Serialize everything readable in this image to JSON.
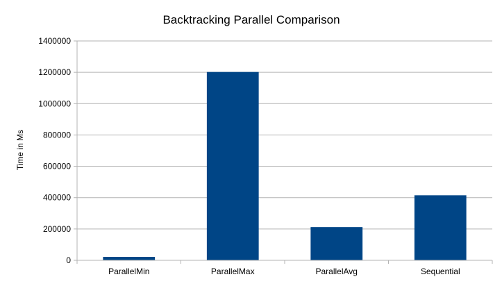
{
  "chart_data": {
    "type": "bar",
    "title": "Backtracking Parallel Comparison",
    "xlabel": "",
    "ylabel": "Time in Ms",
    "categories": [
      "ParallelMin",
      "ParallelMax",
      "ParallelAvg",
      "Sequential"
    ],
    "values": [
      22000,
      1202000,
      212000,
      415000
    ],
    "ylim": [
      0,
      1400000
    ],
    "yticks": [
      "0",
      "200000",
      "400000",
      "600000",
      "800000",
      "1000000",
      "1200000",
      "1400000"
    ],
    "grid": true,
    "legend": "none",
    "bar_color": "#004586",
    "grid_color": "#b3b3b3"
  }
}
